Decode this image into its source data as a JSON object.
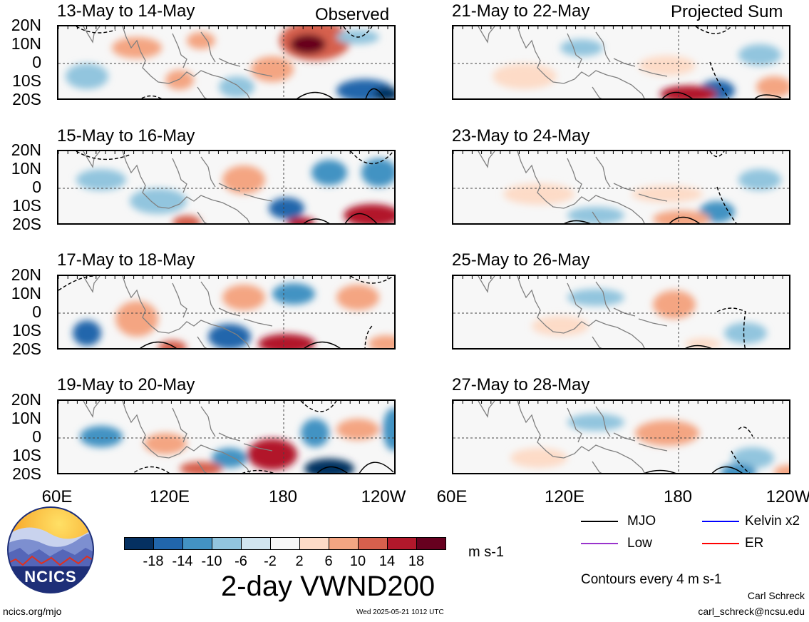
{
  "left_column": {
    "corner_label": "Observed",
    "panels": [
      {
        "title": "13-May to 14-May"
      },
      {
        "title": "15-May to 16-May"
      },
      {
        "title": "17-May to 18-May"
      },
      {
        "title": "19-May to 20-May"
      }
    ]
  },
  "right_column": {
    "corner_label": "Projected Sum",
    "panels": [
      {
        "title": "21-May to 22-May"
      },
      {
        "title": "23-May to 24-May"
      },
      {
        "title": "25-May to 26-May"
      },
      {
        "title": "27-May to 28-May"
      }
    ]
  },
  "axes": {
    "y_labels": [
      "20N",
      "10N",
      "0",
      "10S",
      "20S"
    ],
    "x_labels": [
      "60E",
      "120E",
      "180",
      "120W"
    ],
    "x_labels_right": [
      "60E",
      "120E",
      "180",
      "120W"
    ]
  },
  "colorbar": {
    "colors": [
      "#053061",
      "#2166ac",
      "#4393c3",
      "#92c5de",
      "#d1e5f0",
      "#f7f7f7",
      "#fddbc7",
      "#f4a582",
      "#d6604d",
      "#b2182b",
      "#67001f"
    ],
    "tick_labels": [
      "-18",
      "-14",
      "-10",
      "-6",
      "-2",
      "2",
      "6",
      "10",
      "14",
      "18"
    ],
    "units": "m s-1",
    "title": "2-day VWND200"
  },
  "legend": {
    "items": [
      {
        "label": "MJO",
        "color": "#000000"
      },
      {
        "label": "Kelvin x2",
        "color": "#0000ff"
      },
      {
        "label": "Low",
        "color": "#9933cc"
      },
      {
        "label": "ER",
        "color": "#ff0000"
      }
    ],
    "contour_note": "Contours every 4 m s-1"
  },
  "footer": {
    "logo_text": "NCICS",
    "url": "ncics.org/mjo",
    "timestamp": "Wed 2025-05-21 1012 UTC",
    "author": "Carl Schreck",
    "email": "carl_schreck@ncsu.edu"
  }
}
